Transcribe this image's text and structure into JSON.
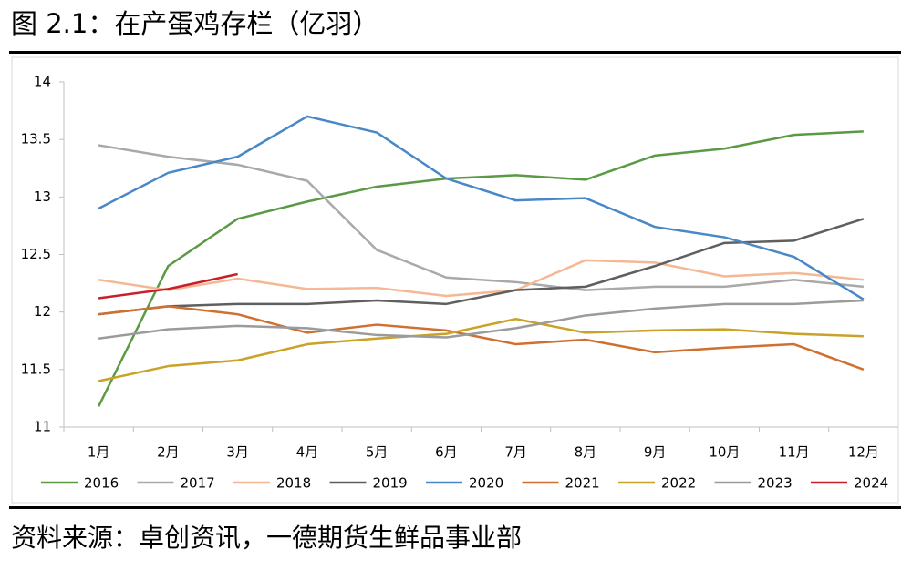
{
  "chart_data": {
    "type": "line",
    "title": "图 2.1：在产蛋鸡存栏（亿羽）",
    "source": "资料来源：卓创资讯，一德期货生鲜品事业部",
    "categories": [
      "1月",
      "2月",
      "3月",
      "4月",
      "5月",
      "6月",
      "7月",
      "8月",
      "9月",
      "10月",
      "11月",
      "12月"
    ],
    "ylim": [
      11,
      14
    ],
    "yticks": [
      11,
      11.5,
      12,
      12.5,
      13,
      13.5,
      14
    ],
    "series": [
      {
        "name": "2016",
        "color": "#5b9a45",
        "values": [
          11.18,
          12.4,
          12.81,
          12.96,
          13.09,
          13.16,
          13.19,
          13.15,
          13.36,
          13.42,
          13.54,
          13.57
        ]
      },
      {
        "name": "2017",
        "color": "#a9a9a9",
        "values": [
          13.45,
          13.35,
          13.28,
          13.14,
          12.54,
          12.3,
          12.26,
          12.19,
          12.22,
          12.22,
          12.28,
          12.22
        ]
      },
      {
        "name": "2018",
        "color": "#f5b895",
        "values": [
          12.28,
          12.19,
          12.29,
          12.2,
          12.21,
          12.14,
          12.19,
          12.45,
          12.43,
          12.31,
          12.34,
          12.28
        ]
      },
      {
        "name": "2019",
        "color": "#5f5f5f",
        "values": [
          11.98,
          12.05,
          12.07,
          12.07,
          12.1,
          12.07,
          12.19,
          12.22,
          12.4,
          12.6,
          12.62,
          12.81
        ]
      },
      {
        "name": "2020",
        "color": "#4a87c6",
        "values": [
          12.9,
          13.21,
          13.35,
          13.7,
          13.56,
          13.16,
          12.97,
          12.99,
          12.74,
          12.65,
          12.48,
          12.11
        ]
      },
      {
        "name": "2021",
        "color": "#d06f2f",
        "values": [
          11.98,
          12.05,
          11.98,
          11.82,
          11.89,
          11.84,
          11.72,
          11.76,
          11.65,
          11.69,
          11.72,
          11.5
        ]
      },
      {
        "name": "2022",
        "color": "#c9a227",
        "values": [
          11.4,
          11.53,
          11.58,
          11.72,
          11.77,
          11.81,
          11.94,
          11.82,
          11.84,
          11.85,
          11.81,
          11.79
        ]
      },
      {
        "name": "2023",
        "color": "#9b9b9b",
        "values": [
          11.77,
          11.85,
          11.88,
          11.86,
          11.8,
          11.78,
          11.86,
          11.97,
          12.03,
          12.07,
          12.07,
          12.1
        ]
      },
      {
        "name": "2024",
        "color": "#c8202a",
        "values": [
          12.12,
          12.2,
          12.33,
          null,
          null,
          null,
          null,
          null,
          null,
          null,
          null,
          null
        ]
      }
    ]
  }
}
